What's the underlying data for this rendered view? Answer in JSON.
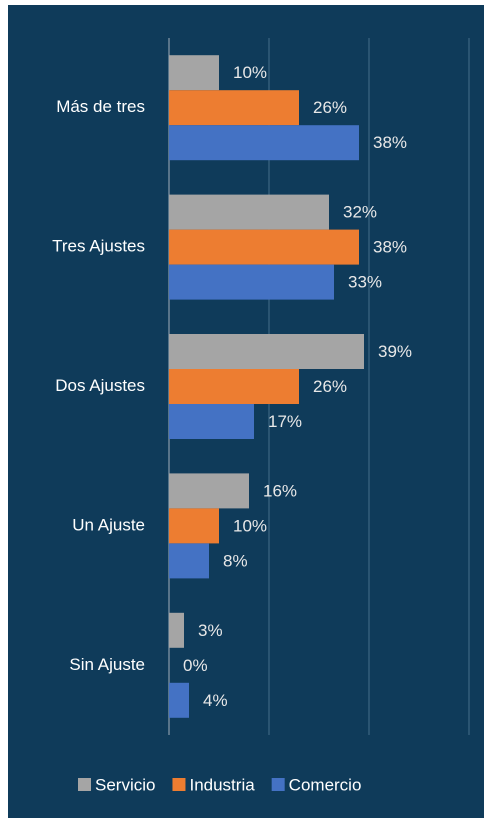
{
  "chart_data": {
    "type": "hbar",
    "categories": [
      "Más de tres",
      "Tres Ajustes",
      "Dos Ajustes",
      "Un Ajuste",
      "Sin Ajuste"
    ],
    "series": [
      {
        "name": "Servicio",
        "color": "#a5a5a5",
        "values": [
          10,
          32,
          39,
          16,
          3
        ],
        "value_labels": [
          "10%",
          "32%",
          "39%",
          "16%",
          "3%"
        ]
      },
      {
        "name": "Industria",
        "color": "#ed7d31",
        "values": [
          26,
          38,
          26,
          10,
          0
        ],
        "value_labels": [
          "26%",
          "38%",
          "26%",
          "10%",
          "0%"
        ]
      },
      {
        "name": "Comercio",
        "color": "#4472c4",
        "values": [
          38,
          33,
          17,
          8,
          4
        ],
        "value_labels": [
          "38%",
          "33%",
          "17%",
          "8%",
          "4%"
        ]
      }
    ],
    "xlim": [
      0,
      60
    ],
    "xticks": [
      0,
      20,
      40,
      60
    ],
    "grid": true,
    "legend": "bottom"
  }
}
